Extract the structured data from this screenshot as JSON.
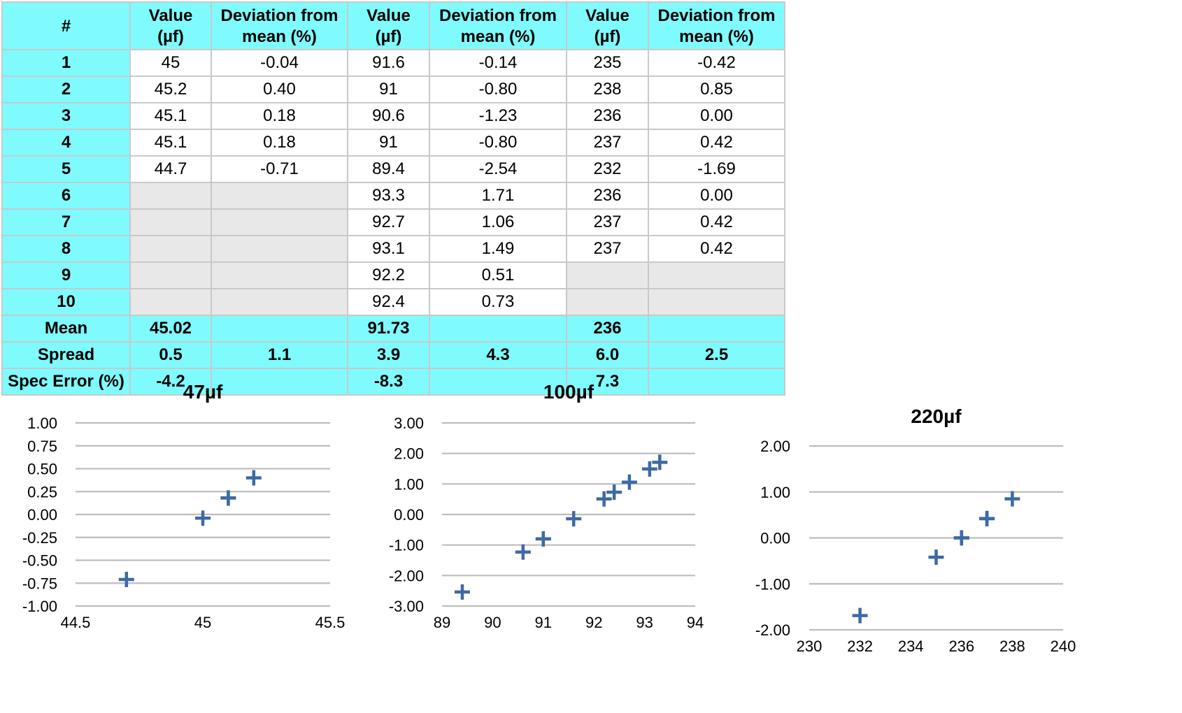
{
  "table": {
    "headers": [
      "#",
      "Value\n(µf)",
      "Deviation from\nmean (%)",
      "Value\n(µf)",
      "Deviation from\nmean (%)",
      "Value\n(µf)",
      "Deviation from\nmean (%)"
    ],
    "rows": [
      {
        "label": "1",
        "cells": [
          "45",
          "-0.04",
          "91.6",
          "-0.14",
          "235",
          "-0.42"
        ]
      },
      {
        "label": "2",
        "cells": [
          "45.2",
          "0.40",
          "91",
          "-0.80",
          "238",
          "0.85"
        ]
      },
      {
        "label": "3",
        "cells": [
          "45.1",
          "0.18",
          "90.6",
          "-1.23",
          "236",
          "0.00"
        ]
      },
      {
        "label": "4",
        "cells": [
          "45.1",
          "0.18",
          "91",
          "-0.80",
          "237",
          "0.42"
        ]
      },
      {
        "label": "5",
        "cells": [
          "44.7",
          "-0.71",
          "89.4",
          "-2.54",
          "232",
          "-1.69"
        ]
      },
      {
        "label": "6",
        "cells": [
          "",
          "",
          "93.3",
          "1.71",
          "236",
          "0.00"
        ]
      },
      {
        "label": "7",
        "cells": [
          "",
          "",
          "92.7",
          "1.06",
          "237",
          "0.42"
        ]
      },
      {
        "label": "8",
        "cells": [
          "",
          "",
          "93.1",
          "1.49",
          "237",
          "0.42"
        ]
      },
      {
        "label": "9",
        "cells": [
          "",
          "",
          "92.2",
          "0.51",
          "",
          ""
        ]
      },
      {
        "label": "10",
        "cells": [
          "",
          "",
          "92.4",
          "0.73",
          "",
          ""
        ]
      }
    ],
    "summary": [
      {
        "label": "Mean",
        "cells": [
          "45.02",
          "",
          "91.73",
          "",
          "236",
          ""
        ]
      },
      {
        "label": "Spread",
        "cells": [
          "0.5",
          "1.1",
          "3.9",
          "4.3",
          "6.0",
          "2.5"
        ]
      },
      {
        "label": "Spec Error (%)",
        "cells": [
          "-4.2",
          "",
          "-8.3",
          "",
          "7.3",
          ""
        ]
      }
    ]
  },
  "colors": {
    "header_bg": "#7ffbfe",
    "empty_cell": "#e8e8e8",
    "grid": "#bdbdbd",
    "marker": "#3d6aa3"
  },
  "chart_data": [
    {
      "type": "scatter",
      "title": "47µf",
      "xlabel": "",
      "ylabel": "",
      "xlim": [
        44.5,
        45.5
      ],
      "ylim": [
        -1.0,
        1.0
      ],
      "xticks": [
        "44.5",
        "45",
        "45.5"
      ],
      "yticks": [
        "1.00",
        "0.75",
        "0.50",
        "0.25",
        "0.00",
        "-0.25",
        "-0.50",
        "-0.75",
        "-1.00"
      ],
      "grid": true,
      "marker": "plus",
      "points": [
        {
          "x": 45,
          "y": -0.04
        },
        {
          "x": 45.2,
          "y": 0.4
        },
        {
          "x": 45.1,
          "y": 0.18
        },
        {
          "x": 45.1,
          "y": 0.18
        },
        {
          "x": 44.7,
          "y": -0.71
        }
      ]
    },
    {
      "type": "scatter",
      "title": "100µf",
      "xlabel": "",
      "ylabel": "",
      "xlim": [
        89,
        94
      ],
      "ylim": [
        -3.0,
        3.0
      ],
      "xticks": [
        "89",
        "90",
        "91",
        "92",
        "93",
        "94"
      ],
      "yticks": [
        "3.00",
        "2.00",
        "1.00",
        "0.00",
        "-1.00",
        "-2.00",
        "-3.00"
      ],
      "grid": true,
      "marker": "plus",
      "points": [
        {
          "x": 91.6,
          "y": -0.14
        },
        {
          "x": 91,
          "y": -0.8
        },
        {
          "x": 90.6,
          "y": -1.23
        },
        {
          "x": 91,
          "y": -0.8
        },
        {
          "x": 89.4,
          "y": -2.54
        },
        {
          "x": 93.3,
          "y": 1.71
        },
        {
          "x": 92.7,
          "y": 1.06
        },
        {
          "x": 93.1,
          "y": 1.49
        },
        {
          "x": 92.2,
          "y": 0.51
        },
        {
          "x": 92.4,
          "y": 0.73
        }
      ]
    },
    {
      "type": "scatter",
      "title": "220µf",
      "xlabel": "",
      "ylabel": "",
      "xlim": [
        230,
        240
      ],
      "ylim": [
        -2.0,
        2.0
      ],
      "xticks": [
        "230",
        "232",
        "234",
        "236",
        "238",
        "240"
      ],
      "yticks": [
        "2.00",
        "1.00",
        "0.00",
        "-1.00",
        "-2.00"
      ],
      "grid": true,
      "marker": "plus",
      "points": [
        {
          "x": 235,
          "y": -0.42
        },
        {
          "x": 238,
          "y": 0.85
        },
        {
          "x": 236,
          "y": 0.0
        },
        {
          "x": 237,
          "y": 0.42
        },
        {
          "x": 232,
          "y": -1.69
        },
        {
          "x": 236,
          "y": 0.0
        },
        {
          "x": 237,
          "y": 0.42
        },
        {
          "x": 237,
          "y": 0.42
        }
      ]
    }
  ]
}
